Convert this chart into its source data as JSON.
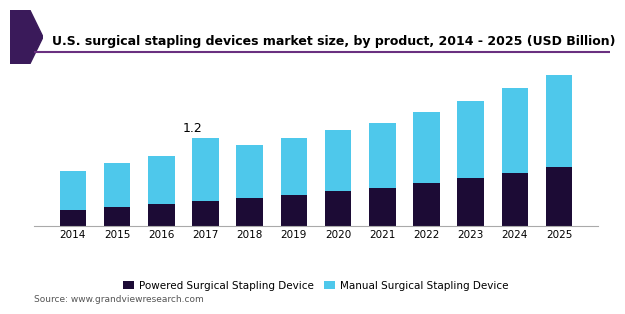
{
  "title": "U.S. surgical stapling devices market size, by product, 2014 - 2025 (USD Billion)",
  "years": [
    2014,
    2015,
    2016,
    2017,
    2018,
    2019,
    2020,
    2021,
    2022,
    2023,
    2024,
    2025
  ],
  "powered": [
    0.22,
    0.26,
    0.3,
    0.34,
    0.38,
    0.42,
    0.47,
    0.52,
    0.58,
    0.65,
    0.72,
    0.8
  ],
  "manual": [
    0.53,
    0.6,
    0.65,
    0.86,
    0.72,
    0.78,
    0.83,
    0.88,
    0.97,
    1.05,
    1.15,
    1.25
  ],
  "powered_color": "#1c0b35",
  "manual_color": "#4ec8eb",
  "annotation_year_idx": 3,
  "annotation_text": "1.2",
  "legend_powered": "Powered Surgical Stapling Device",
  "legend_manual": "Manual Surgical Stapling Device",
  "source_text": "Source: www.grandviewresearch.com",
  "header_line_color": "#6a3080",
  "header_triangle_color": "#3a1a5a",
  "ylim": [
    0,
    2.2
  ],
  "bar_width": 0.6,
  "bg_color": "#ffffff",
  "title_fontsize": 9,
  "tick_fontsize": 7.5,
  "legend_fontsize": 7.5,
  "source_fontsize": 6.5
}
